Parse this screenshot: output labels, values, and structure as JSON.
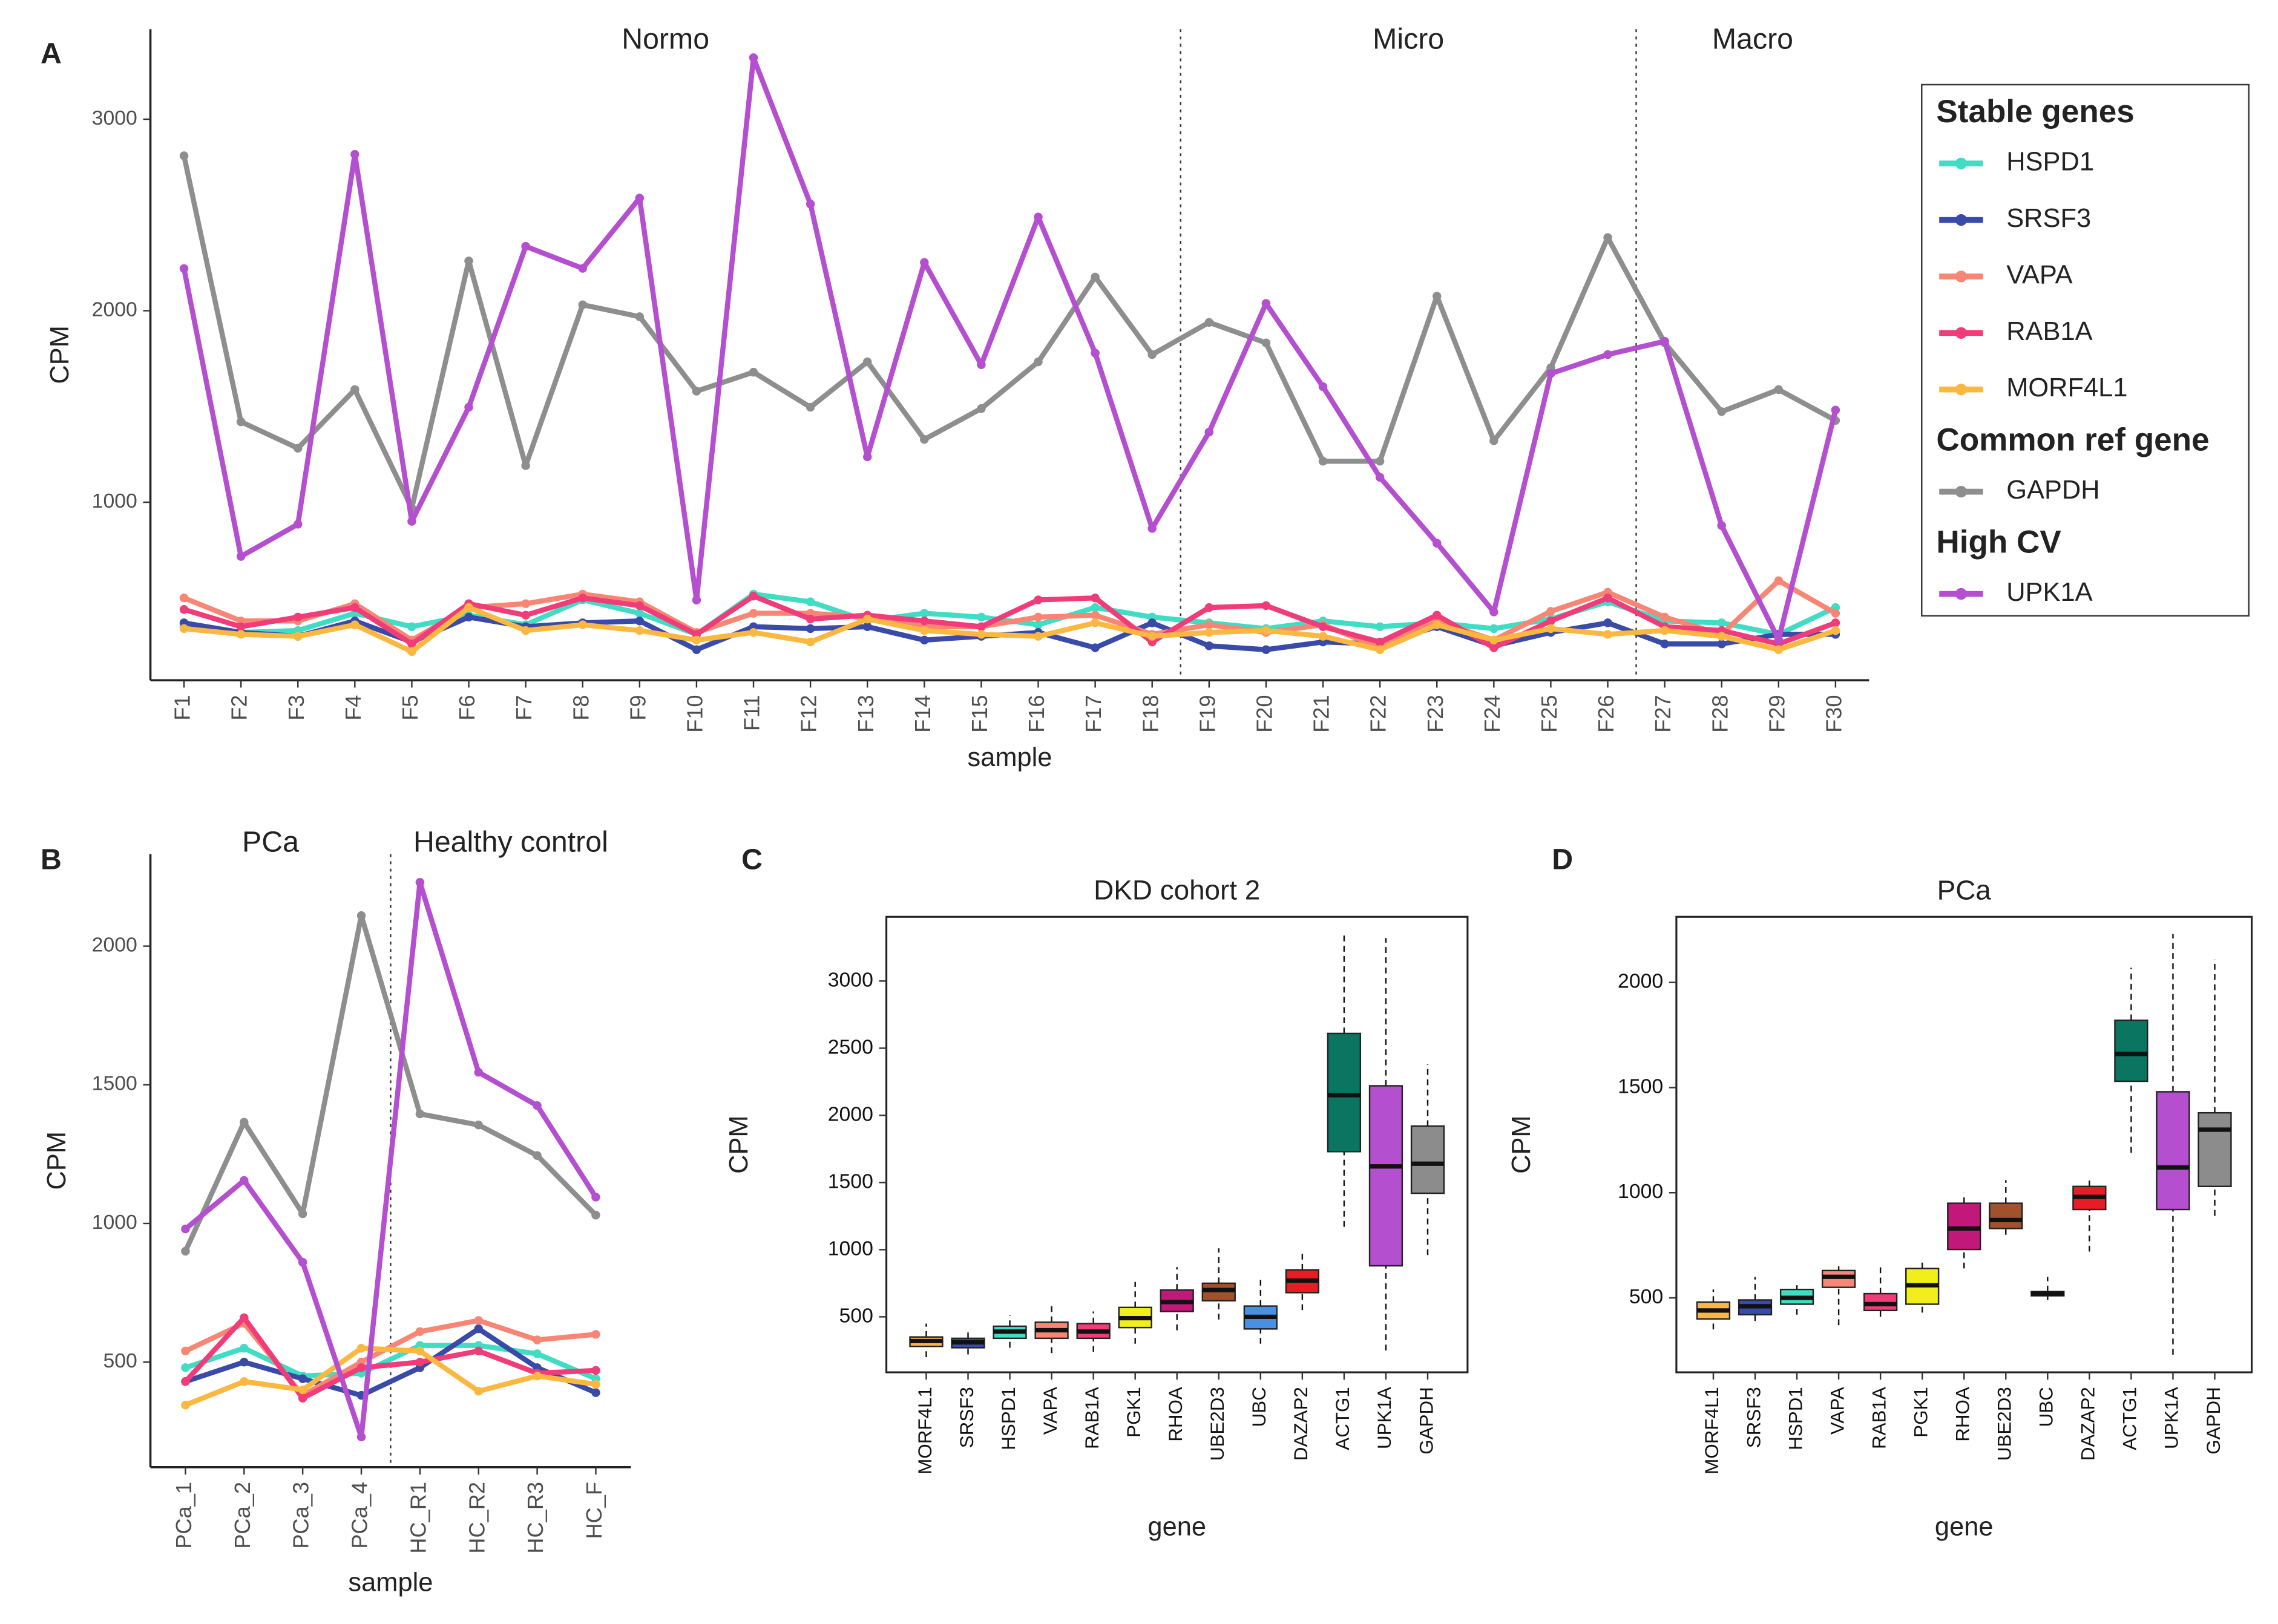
{
  "chart_data": [
    {
      "type": "line",
      "panel": "A",
      "x_label": "sample",
      "y_label": "CPM",
      "categories": [
        "F1",
        "F2",
        "F3",
        "F4",
        "F5",
        "F6",
        "F7",
        "F8",
        "F9",
        "F10",
        "F11",
        "F12",
        "F13",
        "F14",
        "F15",
        "F16",
        "F17",
        "F18",
        "F19",
        "F20",
        "F21",
        "F22",
        "F23",
        "F24",
        "F25",
        "F26",
        "F27",
        "F28",
        "F29",
        "F30"
      ],
      "ylim": [
        70,
        3470
      ],
      "yticks": [
        1000,
        2000,
        3000
      ],
      "annotations": [
        "Normo",
        "Micro",
        "Macro"
      ],
      "dividers_after": [
        "F18",
        "F26"
      ],
      "legend": "right",
      "series": [
        {
          "name": "HSPD1",
          "group": "Stable genes",
          "color": "#40dcc4",
          "values": [
            350,
            320,
            330,
            420,
            350,
            410,
            360,
            490,
            420,
            310,
            520,
            480,
            380,
            420,
            400,
            360,
            450,
            400,
            370,
            340,
            380,
            350,
            370,
            340,
            390,
            480,
            380,
            370,
            310,
            450
          ]
        },
        {
          "name": "SRSF3",
          "color": "#3a4aa8",
          "values": [
            370,
            320,
            300,
            380,
            270,
            400,
            350,
            370,
            380,
            230,
            350,
            340,
            350,
            280,
            300,
            320,
            240,
            370,
            250,
            230,
            270,
            260,
            350,
            250,
            320,
            370,
            260,
            260,
            310,
            310
          ]
        },
        {
          "name": "VAPA",
          "color": "#f88674",
          "values": [
            500,
            380,
            380,
            470,
            280,
            450,
            470,
            520,
            480,
            320,
            420,
            420,
            400,
            350,
            350,
            400,
            410,
            310,
            360,
            320,
            360,
            240,
            380,
            280,
            430,
            530,
            400,
            310,
            590,
            420
          ]
        },
        {
          "name": "RAB1A",
          "color": "#f03c78",
          "values": [
            440,
            350,
            400,
            450,
            260,
            470,
            410,
            500,
            460,
            310,
            510,
            390,
            410,
            380,
            350,
            490,
            500,
            270,
            450,
            460,
            350,
            270,
            410,
            240,
            380,
            500,
            350,
            330,
            260,
            370
          ]
        },
        {
          "name": "MORF4L1",
          "color": "#fbb840",
          "values": [
            340,
            310,
            300,
            360,
            220,
            450,
            330,
            360,
            330,
            280,
            320,
            270,
            390,
            330,
            310,
            300,
            370,
            300,
            320,
            330,
            300,
            230,
            360,
            280,
            340,
            310,
            330,
            300,
            230,
            330
          ]
        },
        {
          "name": "GAPDH",
          "group": "Common ref gene",
          "color": "#8e8e8e",
          "values": [
            2809,
            1420,
            1282,
            1588,
            969,
            2260,
            1191,
            2031,
            1969,
            1580,
            1679,
            1496,
            1733,
            1328,
            1489,
            1733,
            2176,
            1771,
            1939,
            1832,
            1214,
            1214,
            2076,
            1321,
            1702,
            2382,
            1832,
            1473,
            1588,
            1427
          ]
        },
        {
          "name": "UPK1A",
          "group": "High CV",
          "color": "#b44fcf",
          "values": [
            2220,
            717,
            885,
            2817,
            900,
            1496,
            2336,
            2221,
            2588,
            489,
            3321,
            2557,
            1237,
            2252,
            1718,
            2489,
            1779,
            863,
            1366,
            2038,
            1603,
            1130,
            786,
            427,
            1672,
            1771,
            1840,
            878,
            282,
            1481
          ]
        }
      ]
    },
    {
      "type": "line",
      "panel": "B",
      "x_label": "sample",
      "y_label": "CPM",
      "categories": [
        "PCa_1",
        "PCa_2",
        "PCa_3",
        "PCa_4",
        "HC_R1",
        "HC_R2",
        "HC_R3",
        "HC_F"
      ],
      "ylim": [
        121,
        2332
      ],
      "yticks": [
        500,
        1000,
        1500,
        2000
      ],
      "annotations": [
        "PCa",
        "Healthy control"
      ],
      "dividers_after": [
        "PCa_4"
      ],
      "series": [
        {
          "color": "#40dcc4",
          "values": [
            480,
            550,
            450,
            460,
            560,
            560,
            530,
            440
          ]
        },
        {
          "color": "#3a4aa8",
          "values": [
            430,
            500,
            440,
            380,
            480,
            620,
            480,
            390
          ]
        },
        {
          "color": "#f88674",
          "values": [
            540,
            640,
            380,
            500,
            610,
            650,
            580,
            600
          ]
        },
        {
          "color": "#f03c78",
          "values": [
            430,
            660,
            370,
            480,
            500,
            540,
            460,
            470
          ]
        },
        {
          "color": "#fbb840",
          "values": [
            345,
            430,
            400,
            550,
            540,
            395,
            450,
            420
          ]
        },
        {
          "color": "#8e8e8e",
          "values": [
            900,
            1365,
            1035,
            2110,
            1395,
            1355,
            1245,
            1030
          ]
        },
        {
          "color": "#b44fcf",
          "values": [
            980,
            1155,
            860,
            230,
            2230,
            1545,
            1425,
            1095
          ]
        }
      ]
    },
    {
      "type": "box",
      "panel": "C",
      "title": "DKD cohort 2",
      "x_label": "gene",
      "y_label": "CPM",
      "categories": [
        "MORF4L1",
        "SRSF3",
        "HSPD1",
        "VAPA",
        "RAB1A",
        "PGK1",
        "RHOA",
        "UBE2D3",
        "UBC",
        "DAZAP2",
        "ACTG1",
        "UPK1A",
        "GAPDH"
      ],
      "colors": [
        "#fbb840",
        "#3a4aa8",
        "#40dcc4",
        "#f88674",
        "#f03c78",
        "#f2ee1a",
        "#c2187a",
        "#a0522d",
        "#4a90e2",
        "#e81c24",
        "#0a7560",
        "#b44fcf",
        "#8c8c8c"
      ],
      "ylim": [
        87,
        3478
      ],
      "yticks": [
        500,
        1000,
        1500,
        2000,
        2500,
        3000
      ],
      "boxes": [
        {
          "min": 200,
          "q1": 280,
          "median": 320,
          "q3": 350,
          "max": 450
        },
        {
          "min": 220,
          "q1": 270,
          "median": 310,
          "q3": 340,
          "max": 410
        },
        {
          "min": 270,
          "q1": 340,
          "median": 390,
          "q3": 430,
          "max": 510
        },
        {
          "min": 230,
          "q1": 340,
          "median": 400,
          "q3": 460,
          "max": 590
        },
        {
          "min": 240,
          "q1": 340,
          "median": 390,
          "q3": 450,
          "max": 540
        },
        {
          "min": 300,
          "q1": 420,
          "median": 490,
          "q3": 570,
          "max": 760
        },
        {
          "min": 400,
          "q1": 540,
          "median": 610,
          "q3": 700,
          "max": 870
        },
        {
          "min": 480,
          "q1": 620,
          "median": 700,
          "q3": 750,
          "max": 1010
        },
        {
          "min": 300,
          "q1": 410,
          "median": 500,
          "q3": 580,
          "max": 800
        },
        {
          "min": 550,
          "q1": 680,
          "median": 770,
          "q3": 850,
          "max": 990
        },
        {
          "min": 1170,
          "q1": 1730,
          "median": 2150,
          "q3": 2610,
          "max": 3350
        },
        {
          "min": 250,
          "q1": 880,
          "median": 1620,
          "q3": 2220,
          "max": 3320
        },
        {
          "min": 960,
          "q1": 1420,
          "median": 1640,
          "q3": 1920,
          "max": 2380
        }
      ]
    },
    {
      "type": "box",
      "panel": "D",
      "title": "PCa",
      "x_label": "gene",
      "y_label": "CPM",
      "categories": [
        "MORF4L1",
        "SRSF3",
        "HSPD1",
        "VAPA",
        "RAB1A",
        "PGK1",
        "RHOA",
        "UBE2D3",
        "UBC",
        "DAZAP2",
        "ACTG1",
        "UPK1A",
        "GAPDH"
      ],
      "colors": [
        "#fbb840",
        "#3a4aa8",
        "#40dcc4",
        "#f88674",
        "#f03c78",
        "#f2ee1a",
        "#c2187a",
        "#a0522d",
        "#4a90e2",
        "#e81c24",
        "#0a7560",
        "#b44fcf",
        "#8c8c8c"
      ],
      "ylim": [
        146,
        2312
      ],
      "yticks": [
        500,
        1000,
        1500,
        2000
      ],
      "boxes": [
        {
          "min": 350,
          "q1": 400,
          "median": 440,
          "q3": 480,
          "max": 540
        },
        {
          "min": 390,
          "q1": 420,
          "median": 460,
          "q3": 490,
          "max": 600
        },
        {
          "min": 420,
          "q1": 470,
          "median": 500,
          "q3": 540,
          "max": 560
        },
        {
          "min": 370,
          "q1": 550,
          "median": 600,
          "q3": 630,
          "max": 650
        },
        {
          "min": 410,
          "q1": 440,
          "median": 470,
          "q3": 520,
          "max": 650
        },
        {
          "min": 430,
          "q1": 470,
          "median": 560,
          "q3": 640,
          "max": 670
        },
        {
          "min": 640,
          "q1": 730,
          "median": 830,
          "q3": 950,
          "max": 1000
        },
        {
          "min": 800,
          "q1": 830,
          "median": 870,
          "q3": 950,
          "max": 1060
        },
        {
          "min": 490,
          "q1": 510,
          "median": 520,
          "q3": 530,
          "max": 600
        },
        {
          "min": 720,
          "q1": 920,
          "median": 980,
          "q3": 1030,
          "max": 1060
        },
        {
          "min": 1190,
          "q1": 1530,
          "median": 1660,
          "q3": 1820,
          "max": 2070
        },
        {
          "min": 230,
          "q1": 920,
          "median": 1120,
          "q3": 1480,
          "max": 2230
        },
        {
          "min": 890,
          "q1": 1030,
          "median": 1300,
          "q3": 1380,
          "max": 2110
        }
      ]
    }
  ]
}
